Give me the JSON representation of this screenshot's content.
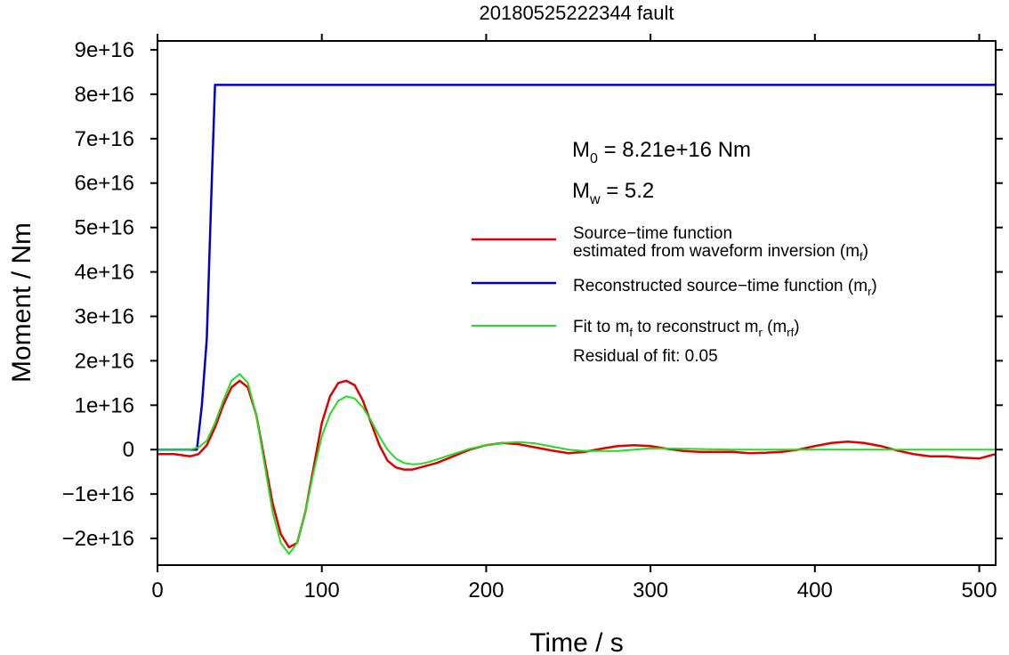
{
  "chart_data": {
    "type": "line",
    "title": "20180525222344 fault",
    "xlabel": "Time / s",
    "ylabel": "Moment / Nm",
    "xlim": [
      0,
      510
    ],
    "ylim": [
      -2.6e+16,
      9.2e+16
    ],
    "xticks": [
      0,
      100,
      200,
      300,
      400,
      500
    ],
    "xtick_labels": [
      "0",
      "100",
      "200",
      "300",
      "400",
      "500"
    ],
    "yticks": [
      -2e+16,
      -1e+16,
      0,
      1e+16,
      2e+16,
      3e+16,
      4e+16,
      5e+16,
      6e+16,
      7e+16,
      8e+16,
      9e+16
    ],
    "ytick_labels": [
      "−2e+16",
      "−1e+16",
      "0",
      "1e+16",
      "2e+16",
      "3e+16",
      "4e+16",
      "5e+16",
      "6e+16",
      "7e+16",
      "8e+16",
      "9e+16"
    ],
    "grid": false,
    "legend_position": "right",
    "annotations": {
      "m0_prefix": "M",
      "m0_sub": "0",
      "m0_value": " = 8.21e+16 Nm",
      "mw_prefix": "M",
      "mw_sub": "w",
      "mw_value": " = 5.2",
      "residual": "Residual of fit: 0.05"
    },
    "series": [
      {
        "key": "mf",
        "legend_line1": "Source−time function",
        "legend_line2": "estimated from waveform inversion (m",
        "legend_sub": "f",
        "legend_end": ")",
        "color": "#e00000",
        "x": [
          0,
          10,
          20,
          25,
          30,
          35,
          40,
          45,
          50,
          55,
          60,
          65,
          70,
          75,
          80,
          85,
          90,
          95,
          100,
          105,
          110,
          115,
          120,
          125,
          130,
          135,
          140,
          145,
          150,
          155,
          160,
          170,
          180,
          190,
          200,
          210,
          220,
          230,
          240,
          250,
          260,
          270,
          280,
          290,
          300,
          310,
          320,
          330,
          340,
          350,
          360,
          370,
          380,
          390,
          400,
          410,
          420,
          430,
          440,
          450,
          460,
          470,
          480,
          490,
          500,
          510
        ],
        "y": [
          -1000000000000000.0,
          -1000000000000000.0,
          -1500000000000000.0,
          -1000000000000000.0,
          1000000000000000.0,
          5000000000000000.0,
          1e+16,
          1.4e+16,
          1.55e+16,
          1.4e+16,
          8000000000000000.0,
          -2000000000000000.0,
          -1.2e+16,
          -1.9e+16,
          -2.2e+16,
          -2.1e+16,
          -1.4e+16,
          -4000000000000000.0,
          6000000000000000.0,
          1.2e+16,
          1.5e+16,
          1.55e+16,
          1.45e+16,
          1.1e+16,
          6000000000000000.0,
          1000000000000000.0,
          -2500000000000000.0,
          -4000000000000000.0,
          -4500000000000000.0,
          -4500000000000000.0,
          -4000000000000000.0,
          -3000000000000000.0,
          -1500000000000000.0,
          0.0,
          1000000000000000.0,
          1500000000000000.0,
          1200000000000000.0,
          500000000000000.0,
          -200000000000000.0,
          -800000000000000.0,
          -500000000000000.0,
          200000000000000.0,
          800000000000000.0,
          1000000000000000.0,
          800000000000000.0,
          200000000000000.0,
          -300000000000000.0,
          -500000000000000.0,
          -500000000000000.0,
          -500000000000000.0,
          -800000000000000.0,
          -700000000000000.0,
          -500000000000000.0,
          0.0,
          800000000000000.0,
          1500000000000000.0,
          1800000000000000.0,
          1500000000000000.0,
          800000000000000.0,
          -200000000000000.0,
          -1000000000000000.0,
          -1500000000000000.0,
          -1500000000000000.0,
          -1800000000000000.0,
          -2000000000000000.0,
          -1000000000000000.0
        ]
      },
      {
        "key": "mr",
        "legend_line1": "Reconstructed source−time function (m",
        "legend_sub": "r",
        "legend_end": ")",
        "color": "#0000cc",
        "x": [
          0,
          24,
          27,
          30,
          33,
          35,
          40,
          100,
          200,
          300,
          400,
          510
        ],
        "y": [
          0,
          0,
          1e+16,
          2.5e+16,
          6e+16,
          8.21e+16,
          8.21e+16,
          8.21e+16,
          8.21e+16,
          8.21e+16,
          8.21e+16,
          8.21e+16
        ]
      },
      {
        "key": "mrf",
        "legend_line1": "Fit to m",
        "legend_sub": "f",
        "legend_mid": " to reconstruct m",
        "legend_sub2": "r",
        "legend_mid2": " (m",
        "legend_sub3": "rf",
        "legend_end": ")",
        "color": "#22dd22",
        "x": [
          0,
          10,
          20,
          25,
          30,
          35,
          40,
          45,
          50,
          55,
          60,
          65,
          70,
          75,
          80,
          85,
          90,
          95,
          100,
          105,
          110,
          115,
          120,
          125,
          130,
          135,
          140,
          145,
          150,
          155,
          160,
          165,
          170,
          180,
          190,
          200,
          210,
          220,
          230,
          240,
          250,
          260,
          280,
          300,
          320,
          350,
          400,
          450,
          510
        ],
        "y": [
          0,
          0,
          0,
          500000000000000.0,
          2000000000000000.0,
          6000000000000000.0,
          1.1e+16,
          1.55e+16,
          1.7e+16,
          1.5e+16,
          8000000000000000.0,
          -3000000000000000.0,
          -1.4e+16,
          -2.1e+16,
          -2.35e+16,
          -2.1e+16,
          -1.4e+16,
          -5000000000000000.0,
          3000000000000000.0,
          8000000000000000.0,
          1.1e+16,
          1.2e+16,
          1.15e+16,
          9500000000000000.0,
          6500000000000000.0,
          3000000000000000.0,
          0.0,
          -2000000000000000.0,
          -3000000000000000.0,
          -3300000000000000.0,
          -3200000000000000.0,
          -2800000000000000.0,
          -2200000000000000.0,
          -1000000000000000.0,
          200000000000000.0,
          1000000000000000.0,
          1500000000000000.0,
          1700000000000000.0,
          1400000000000000.0,
          700000000000000.0,
          0.0,
          -300000000000000.0,
          -300000000000000.0,
          300000000000000.0,
          200000000000000.0,
          0.0,
          0.0,
          0.0,
          0.0
        ]
      }
    ]
  }
}
